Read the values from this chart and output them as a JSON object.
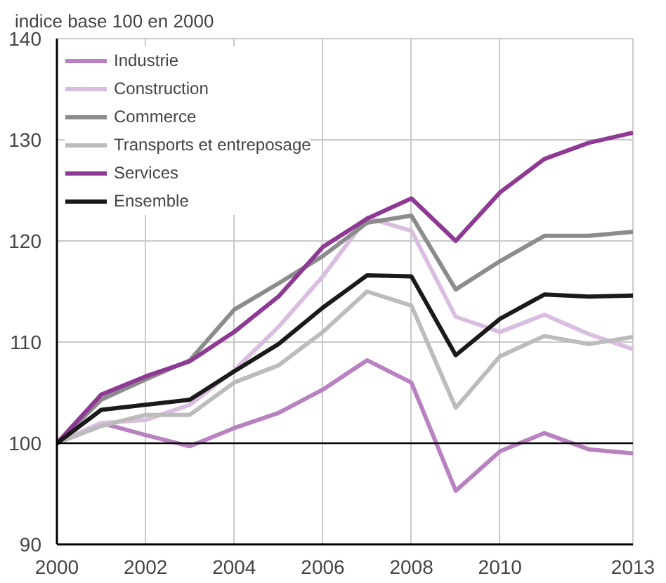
{
  "chart_data": {
    "type": "line",
    "title": "indice base 100 en 2000",
    "x": [
      2000,
      2001,
      2002,
      2003,
      2004,
      2005,
      2006,
      2007,
      2008,
      2009,
      2010,
      2011,
      2012,
      2013
    ],
    "xlim": [
      2000,
      2013
    ],
    "xticks": [
      2000,
      2002,
      2004,
      2006,
      2008,
      2010,
      2013
    ],
    "ylim": [
      90,
      140
    ],
    "yticks": [
      90,
      100,
      110,
      120,
      130,
      140
    ],
    "grid": true,
    "legend": "top left",
    "line_style": "solid",
    "ref_lines": [
      {
        "axis": "y",
        "value": 100,
        "color": "#000000"
      }
    ],
    "series": [
      {
        "name": "Industrie",
        "color": "#b882c0",
        "values": [
          100,
          102,
          100.8,
          99.7,
          101.5,
          103,
          105.3,
          108.2,
          106,
          95.3,
          99.2,
          101,
          99.4,
          99
        ]
      },
      {
        "name": "Construction",
        "color": "#d9bedf",
        "values": [
          100,
          102,
          102.3,
          103.8,
          107.2,
          111.5,
          116.5,
          122.3,
          121,
          112.5,
          111,
          112.7,
          110.8,
          109.3
        ]
      },
      {
        "name": "Commerce",
        "color": "#8c8c8c",
        "values": [
          100,
          104.3,
          106.3,
          108.2,
          113.2,
          115.8,
          118.5,
          121.8,
          122.5,
          115.2,
          118,
          120.5,
          120.5,
          120.9
        ]
      },
      {
        "name": "Transports et entreposage",
        "color": "#bcbcbc",
        "values": [
          100,
          101.7,
          102.8,
          102.8,
          106,
          107.7,
          111,
          115,
          113.6,
          103.5,
          108.6,
          110.6,
          109.8,
          110.5
        ]
      },
      {
        "name": "Services",
        "color": "#8e3a94",
        "values": [
          100,
          104.8,
          106.6,
          108.1,
          111,
          114.5,
          119.4,
          122.2,
          124.2,
          120,
          124.8,
          128.1,
          129.7,
          130.7
        ]
      },
      {
        "name": "Ensemble",
        "color": "#1a1a1a",
        "values": [
          100,
          103.3,
          103.8,
          104.3,
          107.1,
          109.8,
          113.4,
          116.6,
          116.5,
          108.7,
          112.3,
          114.7,
          114.5,
          114.6
        ]
      }
    ]
  }
}
